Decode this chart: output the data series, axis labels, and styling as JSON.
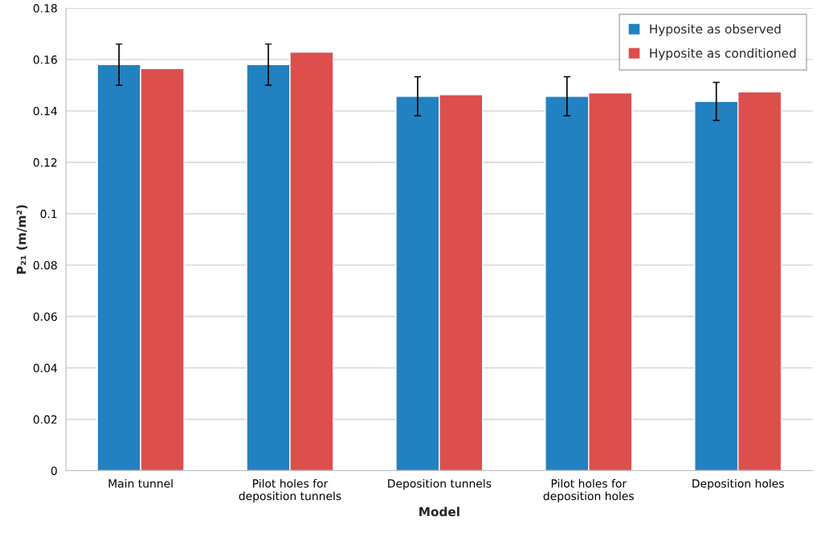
{
  "chart_data": {
    "type": "bar",
    "xlabel": "Model",
    "ylabel": "P₂₁ (m/m²)",
    "categories": [
      "Main tunnel",
      "Pilot holes for\ndeposition tunnels",
      "Deposition tunnels",
      "Pilot holes for\ndeposition holes",
      "Deposition holes"
    ],
    "series": [
      {
        "name": "Hyposite as observed",
        "color": "#2281c0",
        "values": [
          0.158,
          0.158,
          0.1457,
          0.1457,
          0.1437
        ],
        "errors": [
          0.008,
          0.008,
          0.0076,
          0.0076,
          0.0074
        ]
      },
      {
        "name": "Hyposite as conditioned",
        "color": "#dc4f4d",
        "values": [
          0.1565,
          0.1629,
          0.1463,
          0.147,
          0.1474
        ]
      }
    ],
    "ylim": [
      0,
      0.18
    ],
    "yticks": [
      0,
      0.02,
      0.04,
      0.06,
      0.08,
      0.1,
      0.12,
      0.14,
      0.16,
      0.18
    ],
    "grid": "y",
    "legend": "top right"
  }
}
